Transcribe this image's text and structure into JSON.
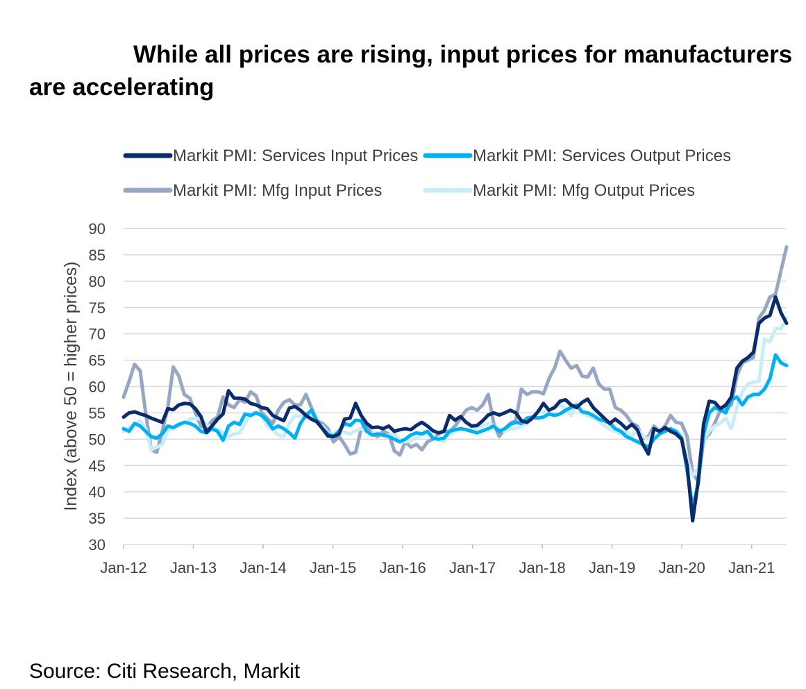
{
  "title": "While all prices are rising, input prices for manufacturers are accelerating",
  "source": "Source: Citi Research, Markit",
  "chart_data": {
    "type": "line",
    "ylabel": "Index (above 50 = higher prices)",
    "ylim": [
      30,
      90
    ],
    "yticks": [
      30,
      35,
      40,
      45,
      50,
      55,
      60,
      65,
      70,
      75,
      80,
      85,
      90
    ],
    "xtick_labels": [
      "Jan-12",
      "Jan-13",
      "Jan-14",
      "Jan-15",
      "Jan-16",
      "Jan-17",
      "Jan-18",
      "Jan-19",
      "Jan-20",
      "Jan-21"
    ],
    "x_start": "Jan-12",
    "grid": "horizontal",
    "legend_position": "top",
    "series": [
      {
        "name": "Markit PMI: Services Input Prices",
        "color": "#0b2c6b",
        "values": [
          54.2,
          55.0,
          55.2,
          54.8,
          54.5,
          54.0,
          53.6,
          53.2,
          55.8,
          55.6,
          56.5,
          56.8,
          56.7,
          55.8,
          54.3,
          51.3,
          52.5,
          53.8,
          54.8,
          59.2,
          57.8,
          57.8,
          57.6,
          56.8,
          56.5,
          56.0,
          55.8,
          54.5,
          54.0,
          53.5,
          55.9,
          56.2,
          55.5,
          54.5,
          53.8,
          53.3,
          52.0,
          50.6,
          50.5,
          51.0,
          53.8,
          54.0,
          56.8,
          54.5,
          53.0,
          52.2,
          52.3,
          52.0,
          52.5,
          51.5,
          51.8,
          52.0,
          51.8,
          52.6,
          53.2,
          52.5,
          51.6,
          51.2,
          51.5,
          54.5,
          53.6,
          54.3,
          53.2,
          52.5,
          52.6,
          53.5,
          54.6,
          55.0,
          54.6,
          55.0,
          55.5,
          55.0,
          53.5,
          53.2,
          54.0,
          55.2,
          56.8,
          55.5,
          56.0,
          57.2,
          57.5,
          56.5,
          56.0,
          57.0,
          57.6,
          56.0,
          55.0,
          54.0,
          53.0,
          53.8,
          53.0,
          52.0,
          52.8,
          51.8,
          49.0,
          47.2,
          52.0,
          51.5,
          52.2,
          51.5,
          51.0,
          50.0,
          45.0,
          34.5,
          42.0,
          53.0,
          57.2,
          57.0,
          55.8,
          56.5,
          58.0,
          63.5,
          64.8,
          65.5,
          66.5,
          72.0,
          73.0,
          73.5,
          77.0,
          74.0,
          72.0
        ]
      },
      {
        "name": "Markit PMI: Services Output Prices",
        "color": "#00b0f0",
        "values": [
          52.0,
          51.5,
          53.0,
          52.5,
          51.5,
          50.5,
          50.2,
          51.0,
          52.5,
          52.2,
          52.8,
          53.2,
          53.0,
          52.5,
          51.5,
          51.2,
          52.0,
          51.5,
          49.8,
          52.5,
          53.2,
          52.8,
          54.8,
          54.5,
          55.0,
          54.5,
          53.5,
          52.0,
          52.5,
          52.0,
          51.2,
          50.2,
          53.0,
          54.5,
          55.5,
          53.5,
          52.0,
          51.0,
          50.5,
          51.5,
          53.0,
          52.6,
          53.6,
          53.5,
          51.5,
          50.8,
          51.0,
          50.8,
          50.5,
          50.0,
          49.5,
          50.0,
          50.8,
          51.2,
          51.0,
          51.5,
          50.2,
          50.0,
          50.2,
          51.5,
          51.8,
          52.0,
          51.8,
          51.5,
          51.2,
          51.6,
          52.0,
          52.5,
          51.5,
          52.0,
          52.8,
          53.2,
          53.0,
          54.0,
          54.2,
          54.0,
          54.2,
          54.8,
          54.5,
          54.8,
          55.5,
          56.0,
          56.5,
          55.2,
          55.0,
          54.5,
          53.8,
          53.5,
          53.0,
          52.0,
          51.5,
          50.5,
          50.0,
          49.5,
          49.0,
          48.5,
          50.0,
          51.0,
          51.5,
          52.0,
          51.5,
          50.2,
          44.0,
          37.0,
          41.5,
          51.0,
          55.0,
          56.0,
          55.5,
          55.0,
          57.5,
          58.0,
          56.5,
          58.0,
          58.5,
          58.5,
          59.5,
          61.5,
          66.0,
          64.5,
          64.0
        ]
      },
      {
        "name": "Markit PMI: Mfg Input Prices",
        "color": "#97a6c2",
        "values": [
          58.0,
          61.0,
          64.2,
          63.0,
          55.0,
          48.0,
          47.5,
          51.5,
          56.0,
          63.7,
          62.0,
          58.5,
          57.8,
          55.0,
          52.5,
          52.0,
          53.5,
          54.2,
          58.0,
          56.5,
          56.0,
          57.5,
          57.0,
          59.0,
          58.2,
          55.0,
          54.0,
          53.0,
          55.5,
          57.0,
          57.5,
          56.5,
          56.5,
          58.5,
          56.0,
          53.5,
          53.0,
          52.0,
          49.5,
          50.5,
          49.0,
          47.2,
          47.5,
          52.0,
          52.5,
          51.0,
          50.5,
          51.5,
          51.0,
          47.8,
          47.0,
          49.5,
          48.5,
          49.0,
          48.0,
          49.5,
          50.0,
          51.0,
          51.5,
          51.5,
          52.5,
          54.0,
          55.5,
          56.0,
          55.5,
          56.5,
          58.5,
          53.0,
          50.5,
          52.0,
          53.0,
          53.5,
          59.5,
          58.5,
          59.0,
          59.0,
          58.6,
          61.5,
          63.5,
          66.7,
          65.0,
          63.5,
          64.0,
          62.0,
          61.8,
          63.5,
          60.5,
          59.5,
          59.5,
          56.0,
          55.5,
          54.5,
          53.0,
          52.5,
          50.2,
          50.5,
          52.5,
          51.5,
          52.5,
          54.5,
          53.2,
          53.0,
          50.5,
          43.5,
          42.0,
          50.0,
          51.0,
          53.0,
          55.5,
          56.0,
          56.5,
          62.0,
          64.5,
          65.0,
          65.5,
          73.0,
          74.5,
          77.0,
          77.5,
          82.0,
          86.5
        ]
      },
      {
        "name": "Markit PMI: Mfg Output Prices",
        "color": "#c9edf7",
        "values": [
          51.5,
          52.2,
          52.8,
          53.5,
          52.0,
          48.0,
          48.5,
          49.0,
          51.8,
          52.0,
          52.5,
          53.2,
          53.8,
          54.0,
          53.8,
          52.8,
          52.2,
          52.0,
          51.2,
          50.5,
          51.0,
          51.2,
          53.0,
          54.8,
          55.2,
          54.5,
          52.5,
          51.8,
          50.8,
          50.5,
          53.0,
          54.5,
          54.3,
          55.0,
          54.5,
          53.0,
          52.5,
          51.2,
          51.0,
          51.8,
          51.3,
          51.0,
          51.6,
          52.0,
          51.5,
          51.0,
          51.2,
          50.6,
          50.8,
          51.0,
          50.0,
          49.5,
          49.7,
          50.2,
          51.0,
          51.2,
          50.5,
          49.8,
          49.6,
          51.0,
          51.5,
          52.0,
          51.8,
          52.0,
          52.0,
          52.5,
          53.0,
          52.6,
          52.0,
          51.5,
          52.0,
          52.0,
          52.5,
          53.0,
          54.0,
          55.5,
          55.0,
          55.5,
          56.0,
          56.5,
          55.8,
          54.5,
          56.5,
          55.0,
          54.5,
          54.0,
          53.5,
          52.5,
          52.0,
          51.5,
          51.0,
          51.5,
          50.5,
          52.0,
          50.6,
          50.0,
          51.5,
          52.0,
          52.0,
          51.8,
          51.5,
          50.8,
          46.0,
          43.0,
          44.5,
          50.0,
          51.5,
          52.5,
          53.0,
          54.0,
          52.0,
          56.0,
          59.0,
          60.5,
          60.8,
          61.0,
          69.0,
          68.5,
          71.0,
          71.0,
          73.0
        ]
      }
    ]
  }
}
